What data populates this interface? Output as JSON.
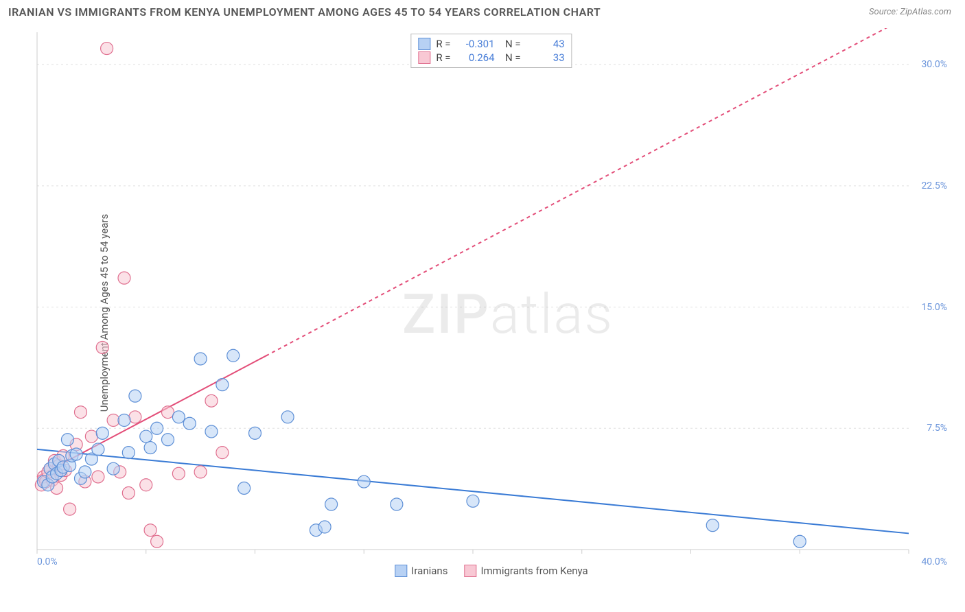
{
  "title": "IRANIAN VS IMMIGRANTS FROM KENYA UNEMPLOYMENT AMONG AGES 45 TO 54 YEARS CORRELATION CHART",
  "source": "Source: ZipAtlas.com",
  "ylabel": "Unemployment Among Ages 45 to 54 years",
  "watermark": {
    "zip": "ZIP",
    "atlas": "atlas"
  },
  "chart": {
    "type": "scatter",
    "xlim": [
      0,
      40
    ],
    "ylim": [
      0,
      32
    ],
    "xticks": [
      0,
      5,
      10,
      15,
      20,
      25,
      30,
      35,
      40
    ],
    "yticks": [
      7.5,
      15.0,
      22.5,
      30.0
    ],
    "xtick_labels": {
      "0": "0.0%",
      "40": "40.0%"
    },
    "ytick_labels": [
      "7.5%",
      "15.0%",
      "22.5%",
      "30.0%"
    ],
    "grid_color": "#e0e0e0",
    "axis_color": "#cccccc",
    "background_color": "#ffffff",
    "marker_radius": 9,
    "marker_opacity": 0.55,
    "marker_stroke_width": 1.2,
    "series": {
      "iranians": {
        "label": "Iranians",
        "color_fill": "#b7d1f4",
        "color_stroke": "#5d8fd6",
        "line_color": "#3a7bd5",
        "line_width": 2,
        "R": "-0.301",
        "N": "43",
        "regression": {
          "x1": 0,
          "y1": 6.2,
          "x2": 40,
          "y2": 1.0,
          "dash": "none",
          "dash_from_x": 40
        },
        "points": [
          [
            0.3,
            4.2
          ],
          [
            0.5,
            4.0
          ],
          [
            0.6,
            5.0
          ],
          [
            0.7,
            4.5
          ],
          [
            0.8,
            5.3
          ],
          [
            0.9,
            4.7
          ],
          [
            1.0,
            5.5
          ],
          [
            1.1,
            4.9
          ],
          [
            1.2,
            5.1
          ],
          [
            1.4,
            6.8
          ],
          [
            1.5,
            5.2
          ],
          [
            1.6,
            5.8
          ],
          [
            1.8,
            5.9
          ],
          [
            2.0,
            4.4
          ],
          [
            2.2,
            4.8
          ],
          [
            2.5,
            5.6
          ],
          [
            2.8,
            6.2
          ],
          [
            3.0,
            7.2
          ],
          [
            3.5,
            5.0
          ],
          [
            4.0,
            8.0
          ],
          [
            4.2,
            6.0
          ],
          [
            4.5,
            9.5
          ],
          [
            5.0,
            7.0
          ],
          [
            5.2,
            6.3
          ],
          [
            5.5,
            7.5
          ],
          [
            6.0,
            6.8
          ],
          [
            6.5,
            8.2
          ],
          [
            7.0,
            7.8
          ],
          [
            7.5,
            11.8
          ],
          [
            8.0,
            7.3
          ],
          [
            8.5,
            10.2
          ],
          [
            9.0,
            12.0
          ],
          [
            9.5,
            3.8
          ],
          [
            10.0,
            7.2
          ],
          [
            11.5,
            8.2
          ],
          [
            12.8,
            1.2
          ],
          [
            13.2,
            1.4
          ],
          [
            13.5,
            2.8
          ],
          [
            15.0,
            4.2
          ],
          [
            16.5,
            2.8
          ],
          [
            20.0,
            3.0
          ],
          [
            31.0,
            1.5
          ],
          [
            35.0,
            0.5
          ]
        ]
      },
      "kenya": {
        "label": "Immigrants from Kenya",
        "color_fill": "#f8c8d4",
        "color_stroke": "#e06f8f",
        "line_color": "#e34d78",
        "line_width": 2,
        "R": "0.264",
        "N": "33",
        "regression": {
          "x1": 0,
          "y1": 4.5,
          "x2": 40,
          "y2": 33.0,
          "dash": "5,5",
          "dash_from_x": 10.5
        },
        "points": [
          [
            0.2,
            4.0
          ],
          [
            0.3,
            4.5
          ],
          [
            0.4,
            4.2
          ],
          [
            0.5,
            4.8
          ],
          [
            0.6,
            5.0
          ],
          [
            0.7,
            4.3
          ],
          [
            0.8,
            5.5
          ],
          [
            0.9,
            3.8
          ],
          [
            1.0,
            5.2
          ],
          [
            1.1,
            4.6
          ],
          [
            1.2,
            5.8
          ],
          [
            1.3,
            4.9
          ],
          [
            1.5,
            2.5
          ],
          [
            1.8,
            6.5
          ],
          [
            2.0,
            8.5
          ],
          [
            2.2,
            4.2
          ],
          [
            2.5,
            7.0
          ],
          [
            2.8,
            4.5
          ],
          [
            3.0,
            12.5
          ],
          [
            3.2,
            31.0
          ],
          [
            3.5,
            8.0
          ],
          [
            3.8,
            4.8
          ],
          [
            4.0,
            16.8
          ],
          [
            4.2,
            3.5
          ],
          [
            4.5,
            8.2
          ],
          [
            5.0,
            4.0
          ],
          [
            5.2,
            1.2
          ],
          [
            5.5,
            0.5
          ],
          [
            6.0,
            8.5
          ],
          [
            6.5,
            4.7
          ],
          [
            7.5,
            4.8
          ],
          [
            8.0,
            9.2
          ],
          [
            8.5,
            6.0
          ]
        ]
      }
    }
  },
  "bottom_legend": [
    {
      "label": "Iranians",
      "series": "iranians"
    },
    {
      "label": "Immigrants from Kenya",
      "series": "kenya"
    }
  ]
}
